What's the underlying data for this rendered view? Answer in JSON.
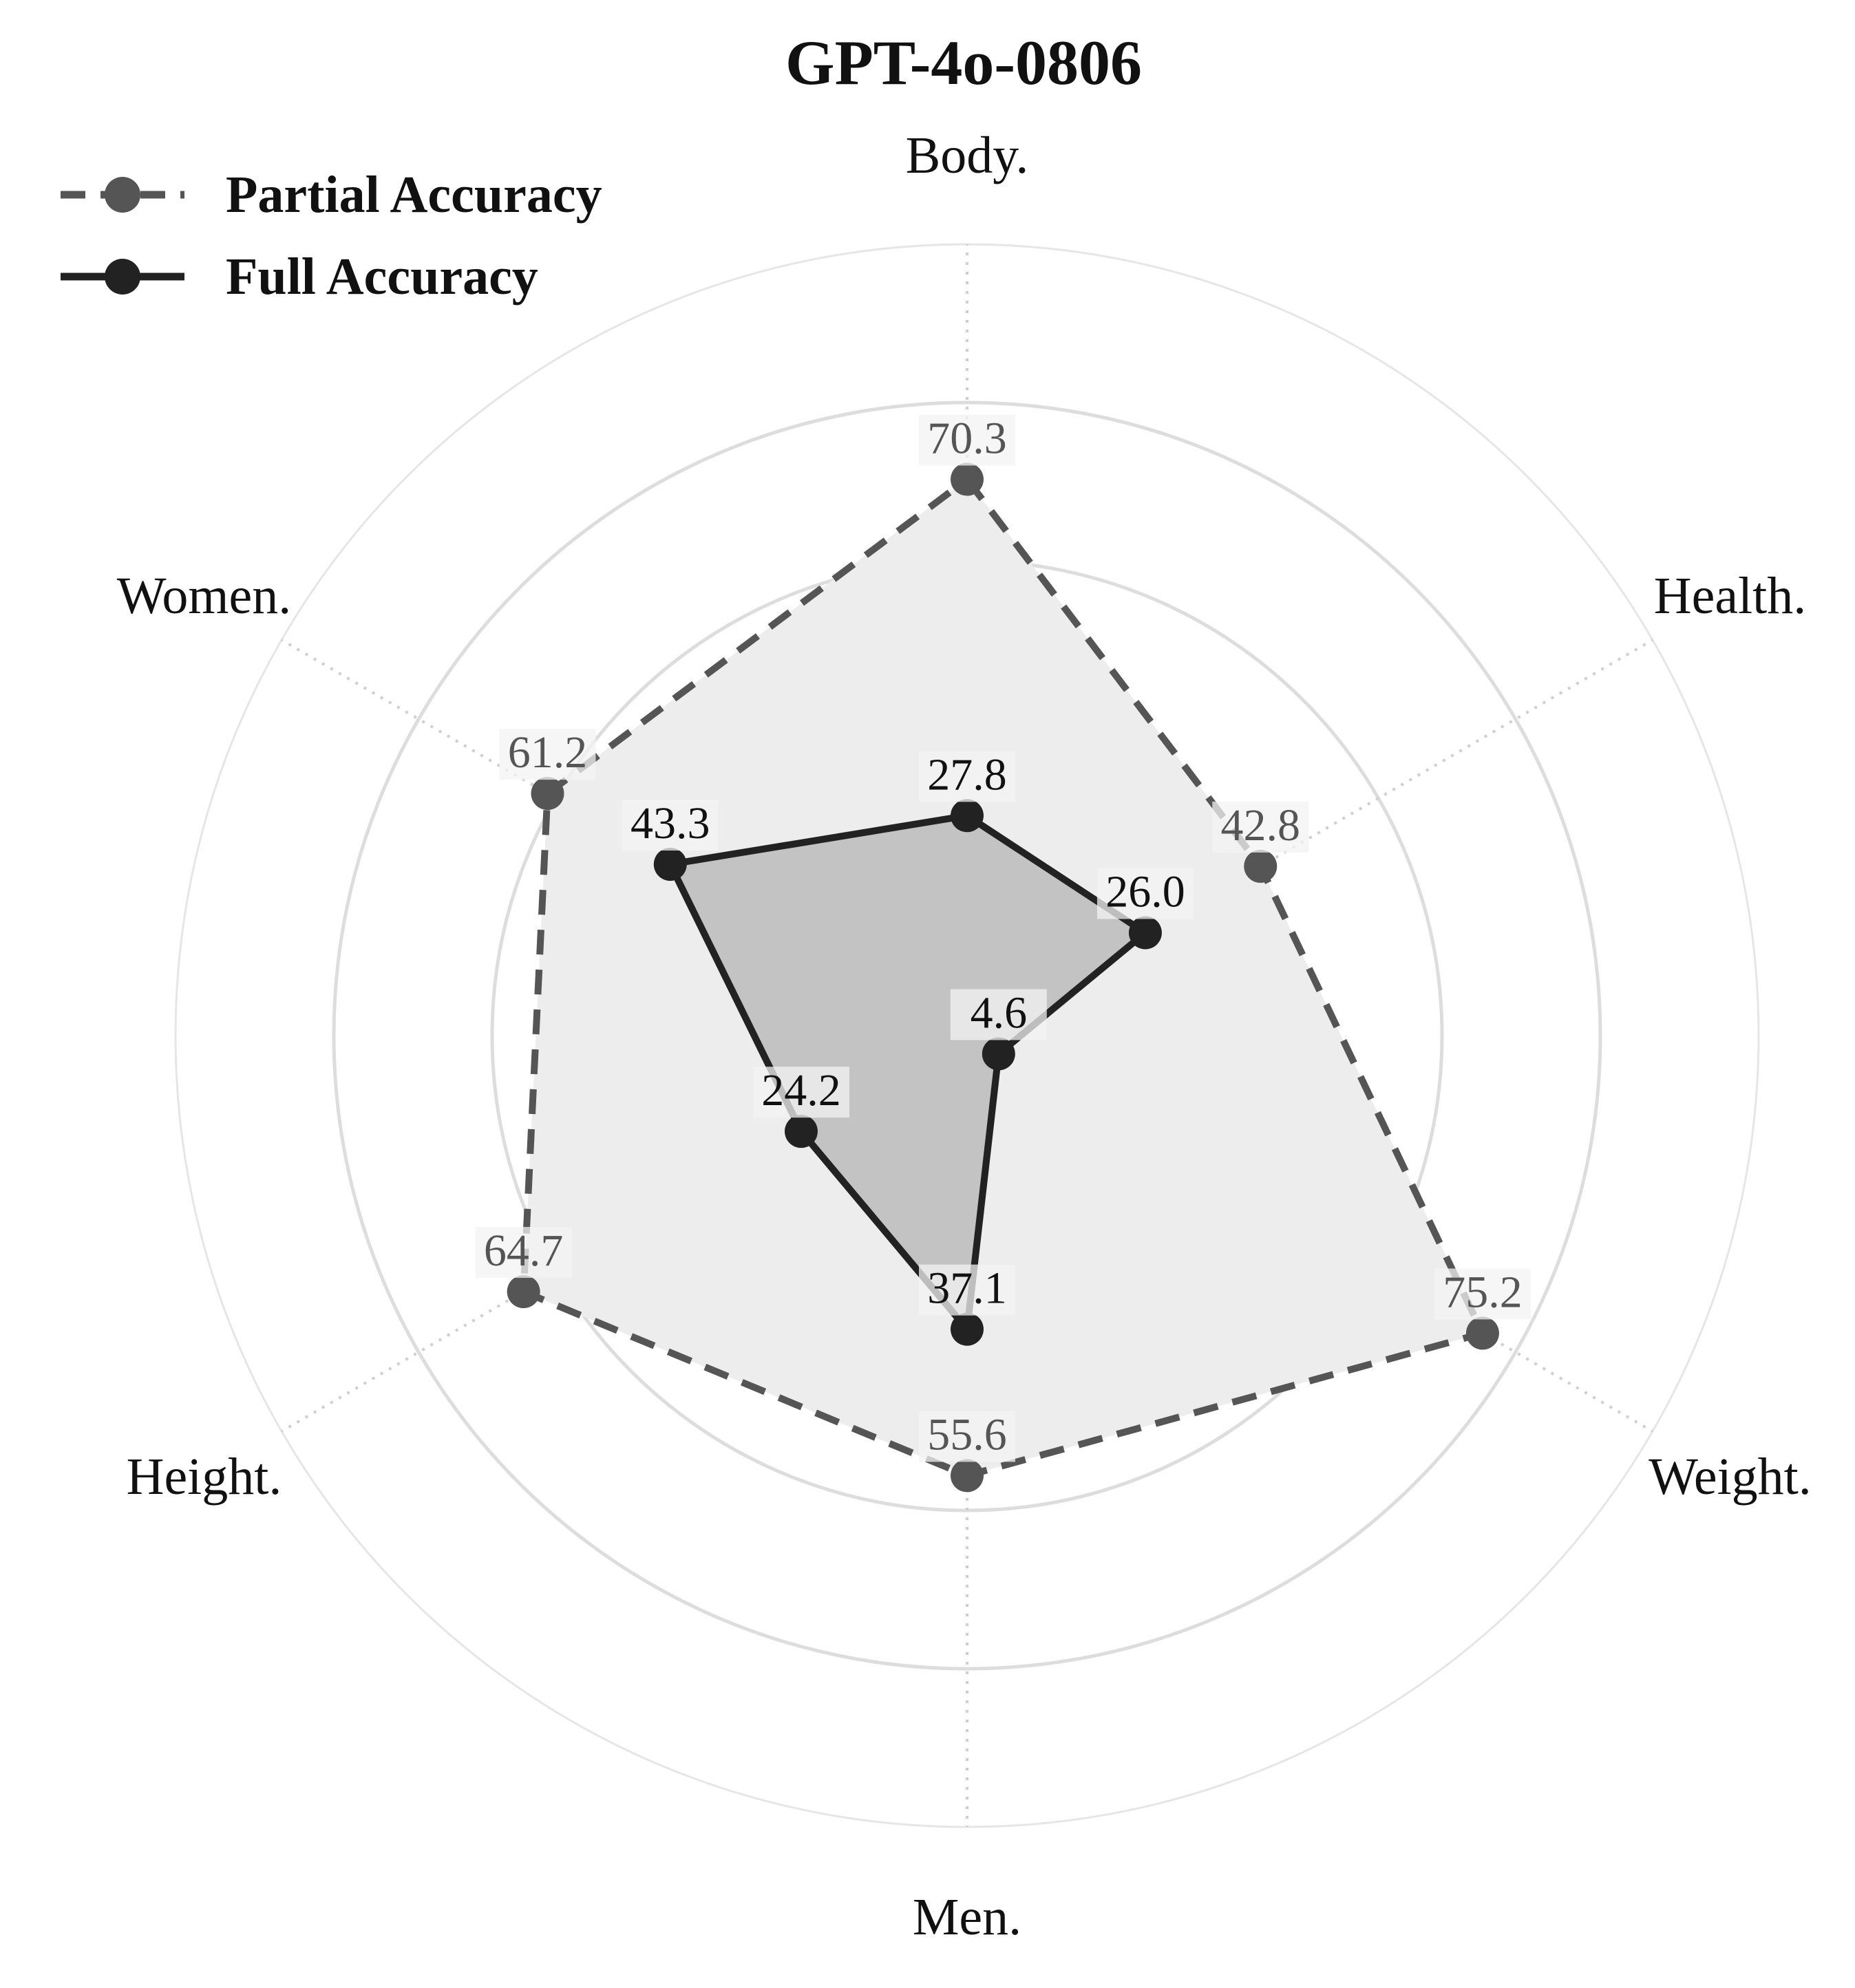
{
  "chart_data": {
    "type": "radar",
    "title": "GPT-4o-0806",
    "categories": [
      "Body.",
      "Health.",
      "Weight.",
      "Men.",
      "Height.",
      "Women."
    ],
    "rlim": [
      0,
      100
    ],
    "grid": true,
    "legend_position": "top-left",
    "series": [
      {
        "name": "Partial Accuracy",
        "values": [
          70.3,
          42.8,
          75.2,
          55.6,
          64.7,
          61.2
        ],
        "value_labels": [
          "70.3",
          "42.8",
          "75.2",
          "55.6",
          "64.7",
          "61.2"
        ],
        "line_style": "dashed",
        "color": "#555555",
        "fill": "#ededed"
      },
      {
        "name": "Full Accuracy",
        "values": [
          27.8,
          26.0,
          4.6,
          37.1,
          24.2,
          43.3
        ],
        "value_labels": [
          "27.8",
          "26.0",
          "4.6",
          "37.1",
          "24.2",
          "43.3"
        ],
        "line_style": "solid",
        "color": "#222222",
        "fill": "#c3c3c3"
      }
    ]
  }
}
